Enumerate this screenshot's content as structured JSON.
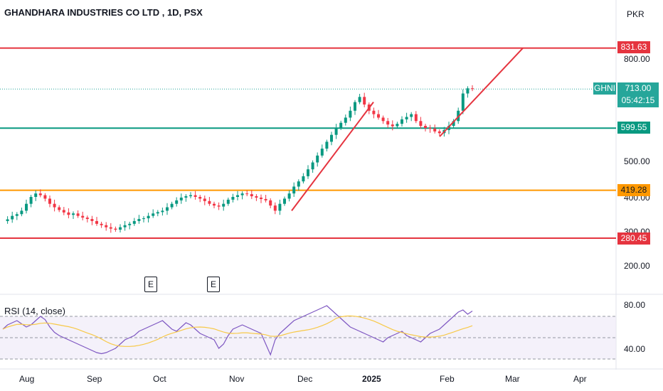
{
  "header": {
    "title": "GHANDHARA INDUSTRIES CO LTD , 1D, PSX",
    "currency": "PKR"
  },
  "price_axis": {
    "ticks": [
      "800.00",
      "500.00",
      "400.00",
      "300.00",
      "200.00"
    ]
  },
  "levels": [
    {
      "label": "831.63",
      "value": 831.63,
      "color": "#e5343f"
    },
    {
      "label": "599.55",
      "value": 599.55,
      "color": "#089981"
    },
    {
      "label": "419.28",
      "value": 419.28,
      "color": "#ff9800"
    },
    {
      "label": "280.45",
      "value": 280.45,
      "color": "#e5343f"
    }
  ],
  "last_price": {
    "ticker": "GHNI",
    "price": "713.00",
    "countdown": "05:42:15",
    "color": "#26a69a"
  },
  "earnings_markers": [
    {
      "label": "E"
    },
    {
      "label": "E"
    }
  ],
  "rsi": {
    "label": "RSI (14, close)",
    "ticks": [
      "80.00",
      "40.00"
    ],
    "color": "#7e57c2",
    "ma_color": "#f7c948"
  },
  "time_axis": {
    "labels": [
      "Aug",
      "Sep",
      "Oct",
      "Nov",
      "Dec",
      "2025",
      "Feb",
      "Mar",
      "Apr"
    ]
  },
  "chart_data": {
    "type": "candlestick",
    "title": "GHANDHARA INDUSTRIES CO LTD , 1D, PSX",
    "ylim": [
      150,
      880
    ],
    "close_series": [
      330,
      335,
      345,
      350,
      360,
      380,
      400,
      410,
      405,
      395,
      380,
      370,
      362,
      355,
      348,
      352,
      345,
      340,
      336,
      330,
      322,
      318,
      312,
      308,
      305,
      312,
      318,
      322,
      330,
      336,
      338,
      345,
      352,
      356,
      360,
      370,
      380,
      390,
      398,
      402,
      405,
      400,
      395,
      388,
      380,
      375,
      372,
      380,
      392,
      400,
      405,
      410,
      408,
      402,
      398,
      394,
      390,
      375,
      360,
      380,
      395,
      410,
      430,
      445,
      460,
      480,
      500,
      520,
      540,
      560,
      580,
      600,
      615,
      630,
      650,
      675,
      690,
      668,
      650,
      640,
      630,
      620,
      610,
      605,
      612,
      625,
      632,
      640,
      620,
      606,
      600,
      598,
      590,
      585,
      594,
      606,
      620,
      650,
      700,
      715,
      713
    ],
    "rsi_series": [
      58,
      62,
      64,
      66,
      63,
      60,
      62,
      66,
      70,
      67,
      60,
      55,
      52,
      50,
      48,
      46,
      44,
      42,
      40,
      38,
      36,
      35,
      36,
      38,
      40,
      44,
      48,
      50,
      52,
      56,
      58,
      60,
      62,
      64,
      66,
      62,
      58,
      56,
      60,
      64,
      62,
      58,
      54,
      52,
      50,
      48,
      40,
      44,
      52,
      58,
      60,
      62,
      60,
      58,
      56,
      54,
      44,
      34,
      48,
      54,
      58,
      62,
      66,
      68,
      70,
      72,
      74,
      76,
      78,
      80,
      76,
      72,
      68,
      64,
      60,
      58,
      56,
      54,
      52,
      50,
      48,
      46,
      50,
      52,
      54,
      56,
      52,
      50,
      48,
      46,
      50,
      54,
      56,
      58,
      62,
      66,
      70,
      74,
      76,
      72,
      75
    ],
    "levels": [
      831.63,
      599.55,
      419.28,
      280.45
    ]
  }
}
